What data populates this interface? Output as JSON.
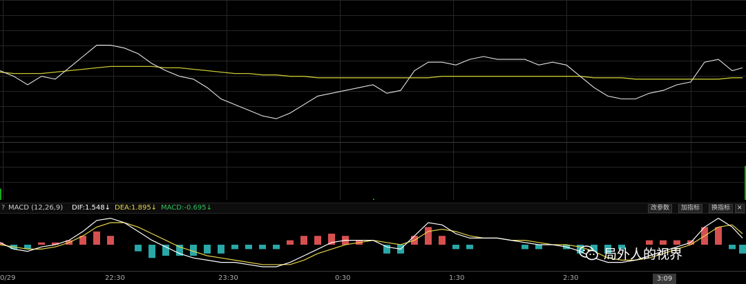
{
  "colors": {
    "background": "#000000",
    "grid": "#262626",
    "price_line": "#e6e6e6",
    "average_line": "#c8c832",
    "dif_line": "#ffffff",
    "dea_line": "#e6d54a",
    "macd_pos": "#d65050",
    "macd_neg": "#2aa7a7",
    "volume": "#19a819"
  },
  "indicator_bar": {
    "help": "?",
    "name": "MACD (12,26,9)",
    "dif": "DIF:1.548↓",
    "dea": "DEA:1.895↓",
    "macd": "MACD:-0.695↓",
    "buttons": [
      "改参数",
      "加指标",
      "换指标"
    ],
    "close_icon": "close-icon"
  },
  "watermark": {
    "text": "局外人的视界",
    "icon": "wechat-icon"
  },
  "cursor_time": "3:09",
  "chart_data": [
    {
      "type": "line",
      "name": "price",
      "x_tick_labels": [
        "0/29",
        "22:30",
        "23:30",
        "0:30",
        "1:30",
        "2:30",
        "3:09"
      ],
      "x": [
        0,
        20,
        40,
        60,
        80,
        100,
        120,
        140,
        160,
        180,
        200,
        220,
        240,
        260,
        280,
        300,
        320,
        340,
        360,
        380,
        400,
        420,
        440,
        460,
        480,
        500,
        520,
        540,
        560,
        580,
        600,
        620,
        640,
        660,
        680,
        700,
        720,
        740,
        760,
        780,
        800,
        820,
        840,
        860,
        880,
        900,
        920,
        940,
        960,
        980,
        1000,
        1020,
        1040,
        1060,
        1075
      ],
      "series": [
        {
          "values": [
            50,
            46,
            40,
            46,
            44,
            52,
            60,
            68,
            68,
            66,
            62,
            55,
            50,
            46,
            44,
            38,
            30,
            26,
            22,
            18,
            16,
            20,
            26,
            32,
            34,
            36,
            38,
            40,
            34,
            36,
            50,
            56,
            56,
            54,
            58,
            60,
            58,
            58,
            58,
            54,
            56,
            54,
            46,
            38,
            32,
            30,
            30,
            34,
            36,
            40,
            42,
            56,
            58,
            50,
            52
          ]
        },
        {
          "values": [
            49,
            48,
            48,
            48,
            49,
            50,
            51,
            52,
            53,
            53,
            53,
            53,
            52,
            52,
            51,
            50,
            49,
            48,
            48,
            47,
            47,
            46,
            46,
            45,
            45,
            45,
            45,
            45,
            45,
            45,
            45,
            45,
            46,
            46,
            46,
            46,
            46,
            46,
            46,
            46,
            46,
            46,
            46,
            45,
            45,
            45,
            44,
            44,
            44,
            44,
            44,
            44,
            44,
            45,
            45
          ]
        }
      ]
    },
    {
      "type": "bar",
      "name": "volume",
      "x": [
        0,
        540,
        1078
      ],
      "values": [
        20,
        2,
        60
      ]
    },
    {
      "type": "bar",
      "name": "MACD",
      "x": [
        0,
        20,
        40,
        60,
        80,
        100,
        120,
        140,
        160,
        180,
        200,
        220,
        240,
        260,
        280,
        300,
        320,
        340,
        360,
        380,
        400,
        420,
        440,
        460,
        480,
        500,
        520,
        540,
        560,
        580,
        600,
        620,
        640,
        660,
        680,
        700,
        720,
        740,
        760,
        780,
        800,
        820,
        840,
        860,
        880,
        900,
        920,
        940,
        960,
        980,
        1000,
        1020,
        1040,
        1060,
        1075
      ],
      "series": [
        {
          "name": "DIF",
          "values": [
            1,
            -2,
            -3,
            -1,
            0,
            2,
            6,
            11,
            12,
            10,
            6,
            2,
            -1,
            -4,
            -6,
            -7,
            -8,
            -8,
            -9,
            -10,
            -10,
            -8,
            -5,
            -2,
            1,
            2,
            2,
            2,
            -1,
            -2,
            4,
            10,
            9,
            5,
            3,
            3,
            3,
            2,
            1,
            0,
            0,
            -1,
            -3,
            -6,
            -8,
            -8,
            -7,
            -5,
            -3,
            -1,
            1,
            8,
            12,
            8,
            3
          ]
        },
        {
          "name": "DEA",
          "values": [
            0,
            -1,
            -2,
            -2,
            -1,
            1,
            4,
            8,
            10,
            10,
            8,
            5,
            2,
            -1,
            -3,
            -5,
            -6,
            -7,
            -8,
            -9,
            -9,
            -9,
            -7,
            -4,
            -2,
            0,
            1,
            2,
            1,
            0,
            2,
            6,
            7,
            6,
            4,
            3,
            3,
            2,
            2,
            1,
            0,
            0,
            -1,
            -3,
            -6,
            -7,
            -7,
            -6,
            -4,
            -2,
            0,
            4,
            8,
            9,
            5
          ]
        },
        {
          "name": "MACD",
          "values": [
            1,
            -2,
            -2,
            1,
            1,
            2,
            4,
            6,
            4,
            0,
            -3,
            -6,
            -5,
            -5,
            -5,
            -4,
            -4,
            -2,
            -2,
            -2,
            -2,
            2,
            4,
            4,
            5,
            4,
            2,
            0,
            -4,
            -4,
            4,
            8,
            4,
            -2,
            -2,
            0,
            0,
            0,
            -2,
            -2,
            0,
            -2,
            -4,
            -6,
            -4,
            -2,
            0,
            2,
            2,
            2,
            2,
            8,
            8,
            -2,
            -4
          ]
        }
      ]
    }
  ]
}
